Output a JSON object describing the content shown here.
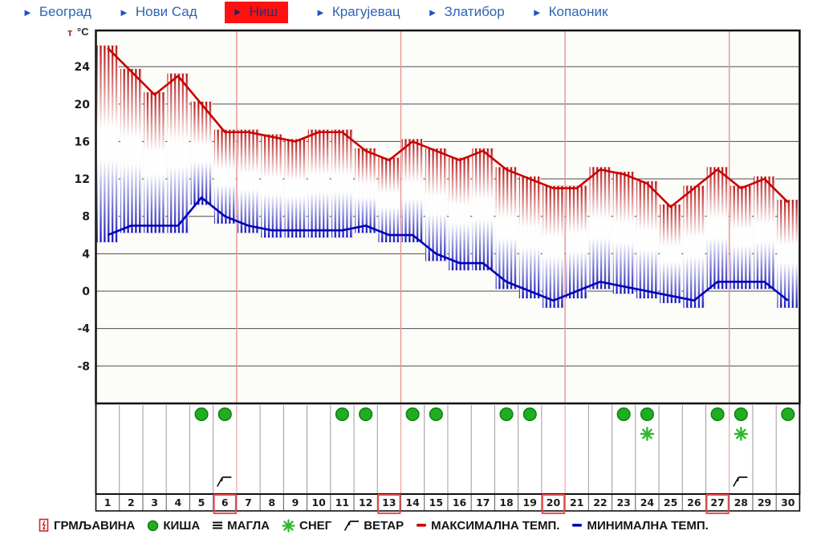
{
  "nav": {
    "items": [
      {
        "label": "Београд",
        "active": false
      },
      {
        "label": "Нови Сад",
        "active": false
      },
      {
        "label": "Ниш",
        "active": true
      },
      {
        "label": "Крагујевац",
        "active": false
      },
      {
        "label": "Златибор",
        "active": false
      },
      {
        "label": "Копаоник",
        "active": false
      }
    ]
  },
  "chart_data": {
    "type": "area",
    "ylabel_prefix": "т",
    "ylabel_unit": "°C",
    "x": [
      1,
      2,
      3,
      4,
      5,
      6,
      7,
      8,
      9,
      10,
      11,
      12,
      13,
      14,
      15,
      16,
      17,
      18,
      19,
      20,
      21,
      22,
      23,
      24,
      25,
      26,
      27,
      28,
      29,
      30
    ],
    "yticks": [
      24,
      20,
      16,
      12,
      8,
      4,
      0,
      -4,
      -8
    ],
    "ylim": [
      -12,
      28
    ],
    "grid": true,
    "series": [
      {
        "name": "МАКСИМАЛНА ТЕМП.",
        "color": "#cc0000",
        "values": [
          26,
          23.5,
          21,
          23,
          20,
          17,
          17,
          16.5,
          16,
          17,
          17,
          15,
          14,
          16,
          15,
          14,
          15,
          13,
          12,
          11,
          11,
          13,
          12.5,
          11.5,
          9,
          11,
          13,
          11,
          12,
          9.5
        ]
      },
      {
        "name": "МИНИМАЛНА ТЕМП.",
        "color": "#0000bb",
        "values": [
          6,
          7,
          7,
          7,
          10,
          8,
          7,
          6.5,
          6.5,
          6.5,
          6.5,
          7,
          6,
          6,
          4,
          3,
          3,
          1,
          0,
          -1,
          0,
          1,
          0.5,
          0,
          -0.5,
          -1,
          1,
          1,
          1,
          -1
        ]
      }
    ],
    "week_separator_after_days": [
      6,
      13,
      20,
      27
    ],
    "highlighted_days": [
      6,
      13,
      20,
      27
    ],
    "icons": {
      "rain_days": [
        5,
        6,
        11,
        12,
        14,
        15,
        18,
        19,
        23,
        24,
        27,
        28,
        30
      ],
      "snow_days": [
        24,
        28
      ],
      "wind_days": [
        6,
        28
      ]
    }
  },
  "colors": {
    "max_line": "#cc0000",
    "min_line": "#0000bb",
    "grid_line": "#4d4d4d",
    "week_line": "#e89494",
    "rain": "#1fae1f",
    "rain_edge": "#0f7d12",
    "snow": "#2db82d",
    "day_box": "#e15050",
    "active_tab_bg": "#ff1111",
    "nav_blue": "#2d64b5"
  },
  "legend": {
    "items": [
      {
        "icon": "thunder-icon",
        "label": "ГРМЉАВИНА"
      },
      {
        "icon": "rain-icon",
        "label": "КИША"
      },
      {
        "icon": "fog-icon",
        "label": "МАГЛА"
      },
      {
        "icon": "snow-icon",
        "label": "СНЕГ"
      },
      {
        "icon": "wind-icon",
        "label": "ВЕТАР"
      },
      {
        "icon": "max-temp-dash-icon",
        "label": "МАКСИМАЛНА ТЕМП."
      },
      {
        "icon": "min-temp-dash-icon",
        "label": "МИНИМАЛНА ТЕМП."
      }
    ]
  }
}
